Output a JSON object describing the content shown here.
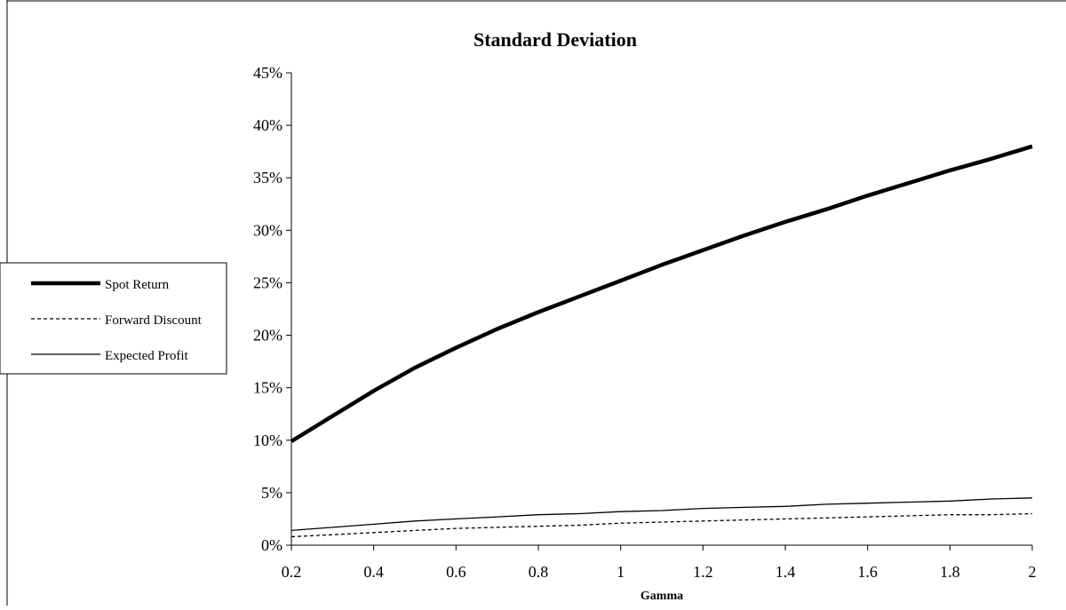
{
  "chart_data": {
    "type": "line",
    "title": "Standard Deviation",
    "xlabel": "Gamma",
    "ylabel": "",
    "xlim": [
      0.2,
      2
    ],
    "ylim": [
      0,
      0.45
    ],
    "x_ticks": [
      0.2,
      0.4,
      0.6,
      0.8,
      1,
      1.2,
      1.4,
      1.6,
      1.8,
      2
    ],
    "x_tick_labels": [
      "0.2",
      "0.4",
      "0.6",
      "0.8",
      "1",
      "1.2",
      "1.4",
      "1.6",
      "1.8",
      "2"
    ],
    "y_ticks": [
      0,
      0.05,
      0.1,
      0.15,
      0.2,
      0.25,
      0.3,
      0.35,
      0.4,
      0.45
    ],
    "y_tick_labels": [
      "0%",
      "5%",
      "10%",
      "15%",
      "20%",
      "25%",
      "30%",
      "35%",
      "40%",
      "45%"
    ],
    "grid": false,
    "legend_position": "left",
    "x": [
      0.2,
      0.3,
      0.4,
      0.5,
      0.6,
      0.7,
      0.8,
      0.9,
      1.0,
      1.1,
      1.2,
      1.3,
      1.4,
      1.5,
      1.6,
      1.7,
      1.8,
      1.9,
      2.0
    ],
    "series": [
      {
        "name": "Spot Return",
        "style": "thick",
        "color": "#000000",
        "values": [
          0.099,
          0.123,
          0.147,
          0.169,
          0.188,
          0.206,
          0.222,
          0.237,
          0.252,
          0.267,
          0.281,
          0.295,
          0.308,
          0.32,
          0.333,
          0.345,
          0.357,
          0.368,
          0.38
        ]
      },
      {
        "name": "Forward Discount",
        "style": "dashed",
        "color": "#000000",
        "values": [
          0.008,
          0.01,
          0.012,
          0.014,
          0.016,
          0.017,
          0.018,
          0.019,
          0.021,
          0.022,
          0.023,
          0.024,
          0.025,
          0.026,
          0.027,
          0.028,
          0.029,
          0.029,
          0.03
        ]
      },
      {
        "name": "Expected Profit",
        "style": "thin",
        "color": "#000000",
        "values": [
          0.014,
          0.017,
          0.02,
          0.023,
          0.025,
          0.027,
          0.029,
          0.03,
          0.032,
          0.033,
          0.035,
          0.036,
          0.037,
          0.039,
          0.04,
          0.041,
          0.042,
          0.044,
          0.045
        ]
      }
    ]
  }
}
